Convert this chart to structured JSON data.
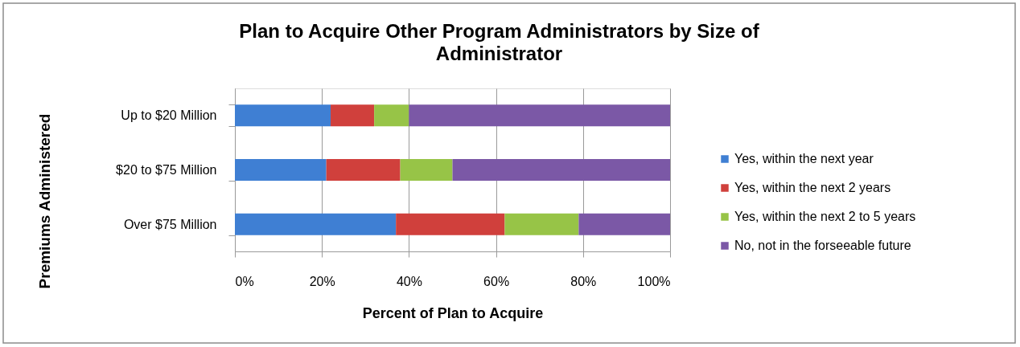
{
  "chart_data": {
    "type": "bar",
    "orientation": "horizontal",
    "stacked": true,
    "title": "Plan to Acquire Other Program Administrators by Size of Administrator",
    "xlabel": "Percent of Plan to Acquire",
    "ylabel": "Premiums Administered",
    "categories": [
      "Up to $20 Million",
      "$20 to $75 Million",
      "Over $75 Million"
    ],
    "series": [
      {
        "name": "Yes, within the next year",
        "color": "#3f7fd3",
        "values": [
          22,
          21,
          37
        ]
      },
      {
        "name": "Yes, within the next 2 years",
        "color": "#d0403c",
        "values": [
          10,
          17,
          25
        ]
      },
      {
        "name": "Yes, within the next 2 to 5 years",
        "color": "#97c447",
        "values": [
          8,
          12,
          17
        ]
      },
      {
        "name": "No, not in the forseeable future",
        "color": "#7b58a6",
        "values": [
          60,
          50,
          21
        ]
      }
    ],
    "xlim": [
      0,
      100
    ],
    "xticks": [
      {
        "value": 0,
        "label": "0%"
      },
      {
        "value": 20,
        "label": "20%"
      },
      {
        "value": 40,
        "label": "40%"
      },
      {
        "value": 60,
        "label": "60%"
      },
      {
        "value": 80,
        "label": "80%"
      },
      {
        "value": 100,
        "label": "100%"
      }
    ],
    "grid": "x",
    "legend": "right"
  }
}
